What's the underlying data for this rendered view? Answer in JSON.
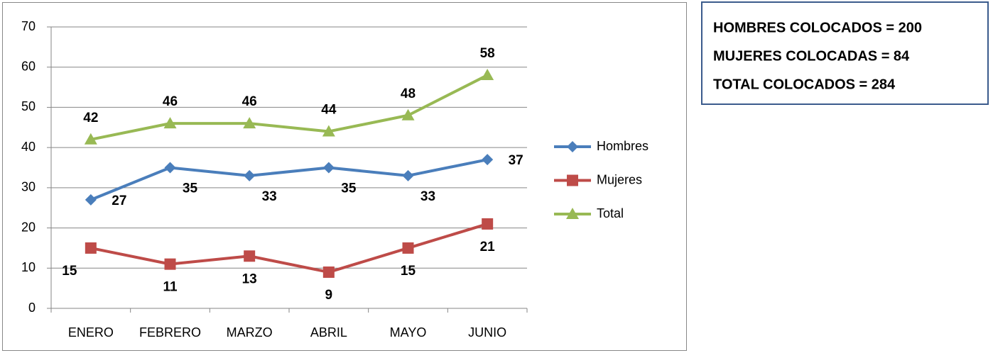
{
  "chart_data": {
    "type": "line",
    "categories": [
      "ENERO",
      "FEBRERO",
      "MARZO",
      "ABRIL",
      "MAYO",
      "JUNIO"
    ],
    "series": [
      {
        "name": "Hombres",
        "color": "#4a7ebb",
        "marker": "diamond",
        "values": [
          27,
          35,
          33,
          35,
          33,
          37
        ]
      },
      {
        "name": "Mujeres",
        "color": "#be4b48",
        "marker": "square",
        "values": [
          15,
          11,
          13,
          9,
          15,
          21
        ]
      },
      {
        "name": "Total",
        "color": "#98b954",
        "marker": "triangle",
        "values": [
          42,
          46,
          46,
          44,
          48,
          58
        ]
      }
    ],
    "ylim": [
      0,
      70
    ],
    "yticks": [
      0,
      10,
      20,
      30,
      40,
      50,
      60,
      70
    ],
    "grid": true,
    "legend": "right",
    "data_labels": true,
    "annotations": [
      "HOMBRES COLOCADOS = 200",
      "MUJERES COLOCADAS = 84",
      "TOTAL COLOCADOS = 284"
    ]
  }
}
